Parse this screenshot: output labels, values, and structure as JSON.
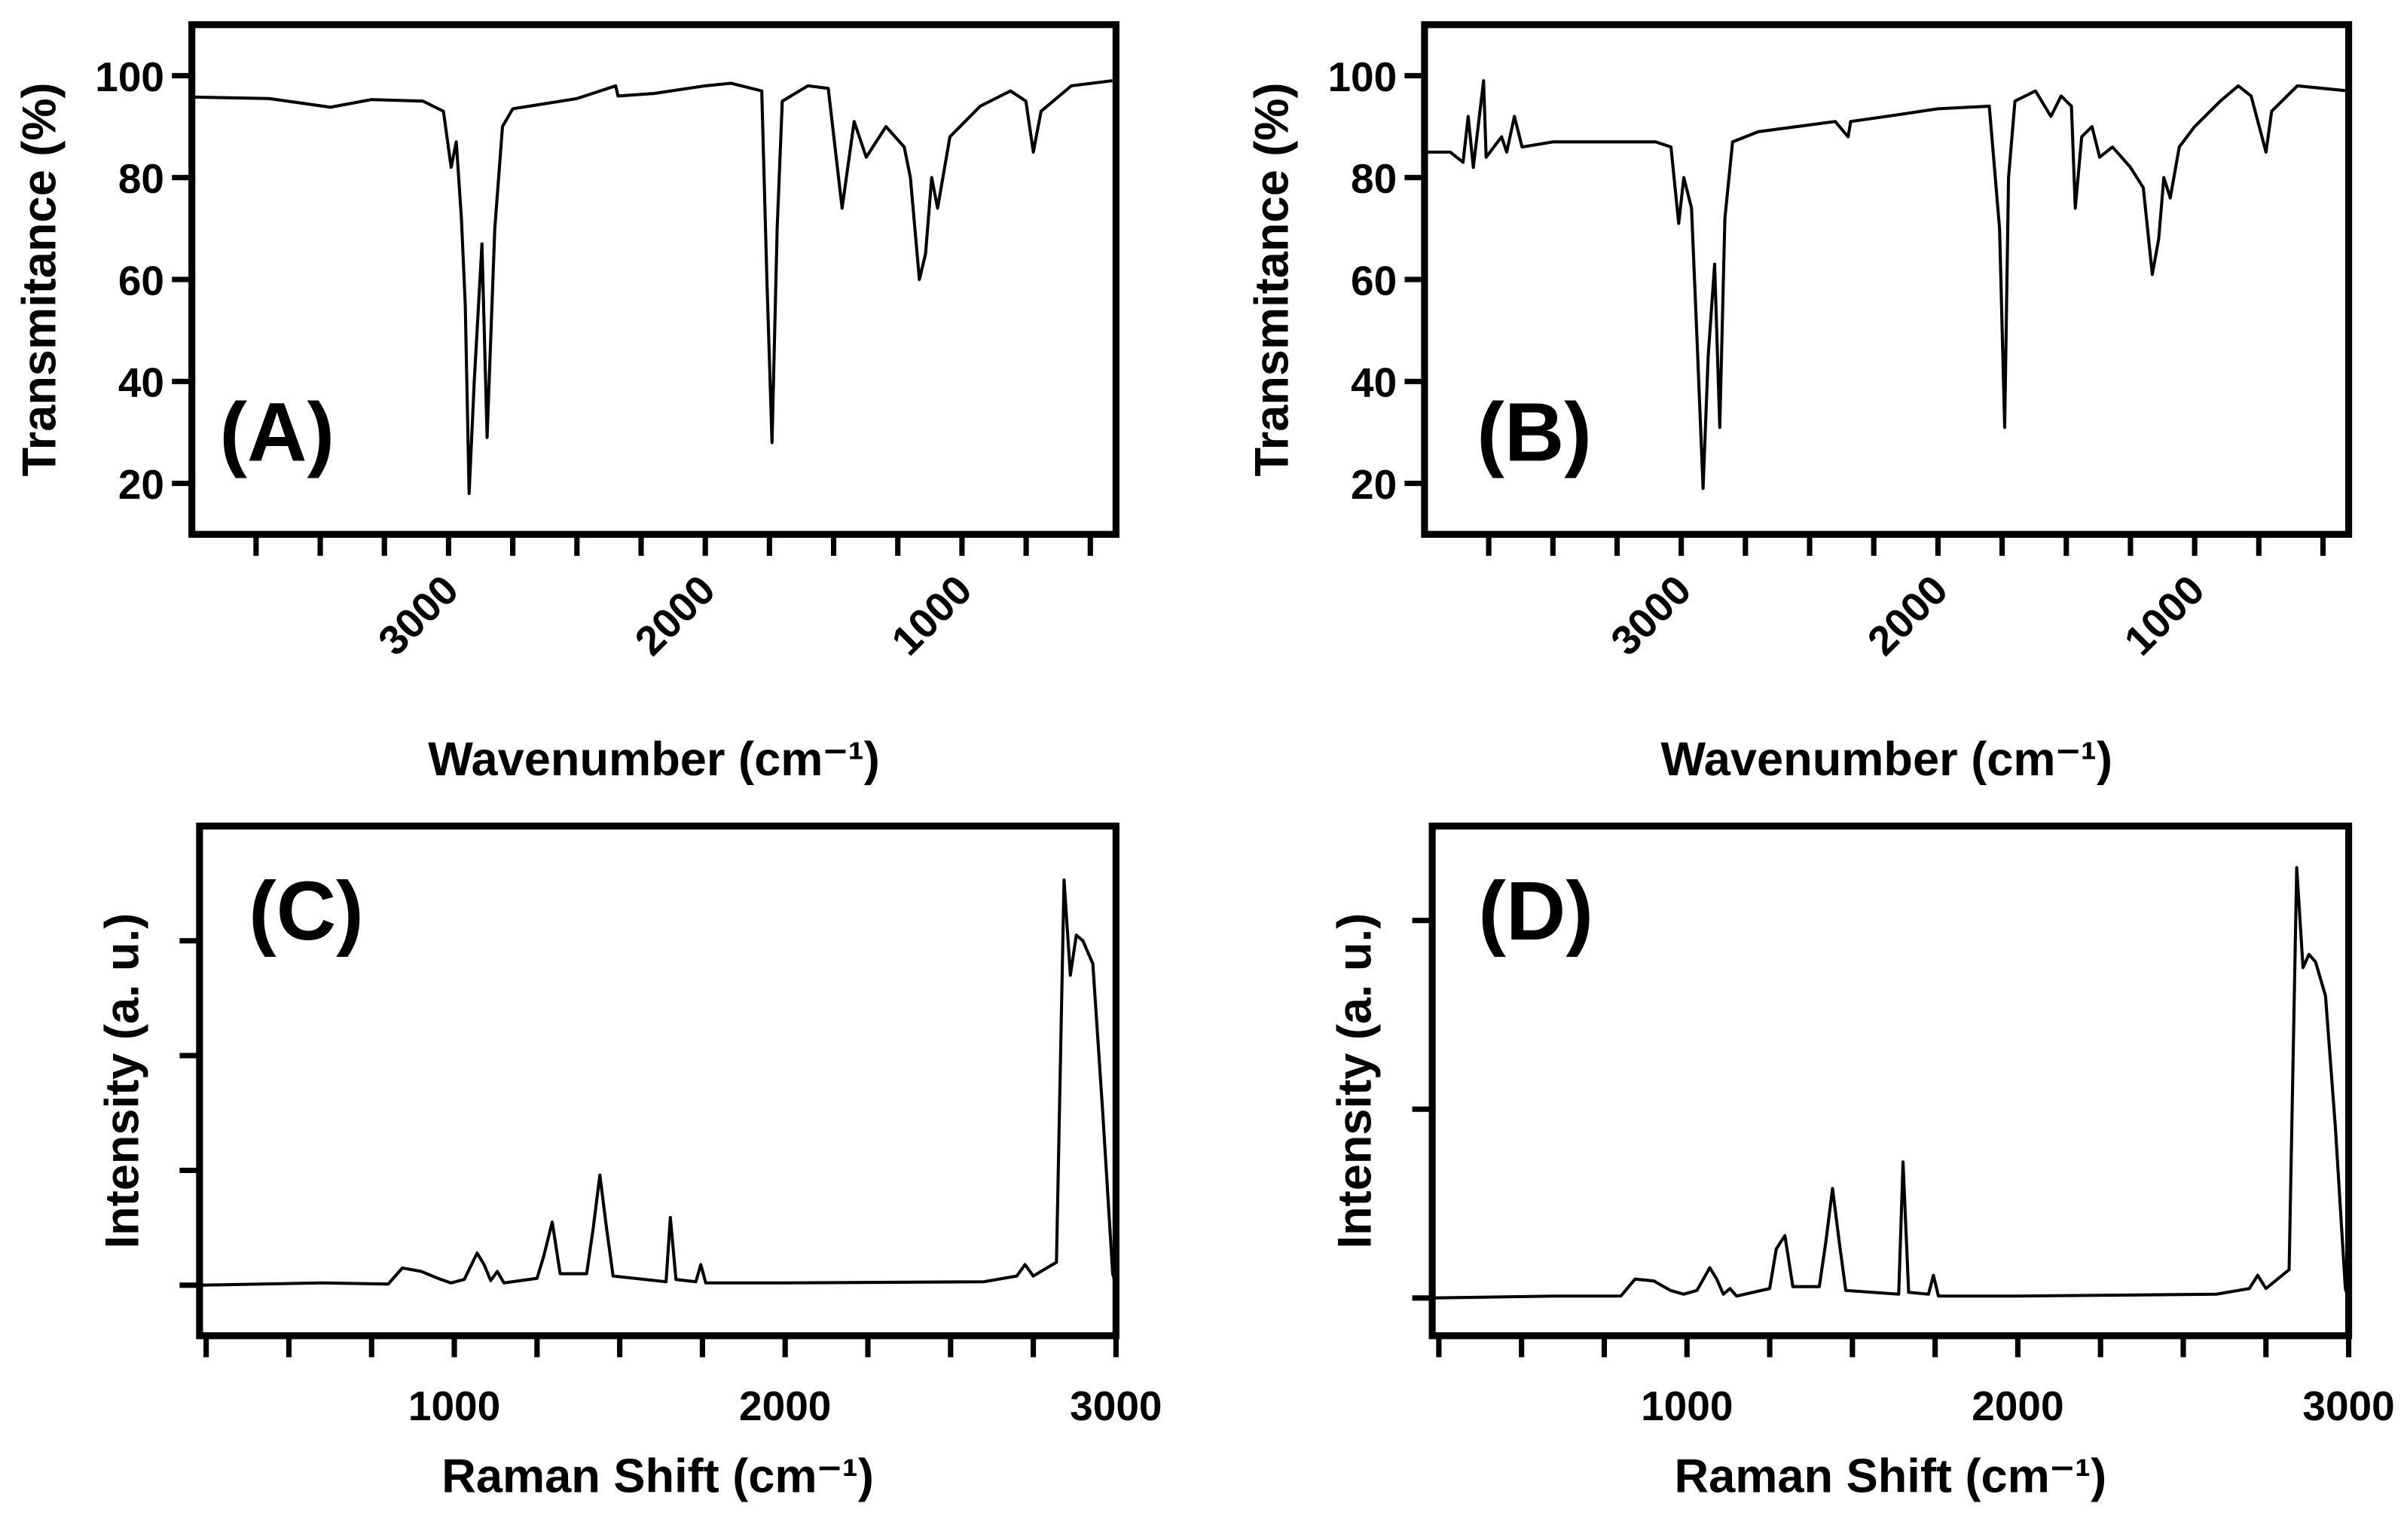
{
  "chart_data": [
    {
      "type": "line",
      "annotation": "(A)",
      "xlabel": "Wavenumber (cm⁻¹)",
      "ylabel": "Transmitance (%)",
      "xlim": [
        4000,
        400
      ],
      "xticks": [
        3000,
        2000,
        1000
      ],
      "xminor": [
        3750,
        3500,
        3250,
        2750,
        2500,
        2250,
        1750,
        1500,
        1250,
        750,
        500
      ],
      "ylim": [
        10,
        110
      ],
      "yticks": [
        20,
        40,
        60,
        80,
        100
      ],
      "series": [
        {
          "color": "#000000",
          "x": [
            4000,
            3700,
            3460,
            3300,
            3100,
            3020,
            2990,
            2970,
            2950,
            2935,
            2920,
            2900,
            2870,
            2850,
            2820,
            2790,
            2750,
            2500,
            2349,
            2340,
            2200,
            2000,
            1900,
            1780,
            1760,
            1740,
            1720,
            1700,
            1600,
            1521,
            1467,
            1420,
            1373,
            1296,
            1225,
            1201,
            1166,
            1142,
            1118,
            1095,
            1047,
            929,
            811,
            751,
            722,
            692,
            574,
            414
          ],
          "values": [
            95.8,
            95.5,
            93.8,
            95.3,
            95,
            93,
            82,
            87,
            72,
            55,
            18,
            40,
            67,
            29,
            70,
            90,
            93.5,
            95.5,
            98,
            96,
            96.5,
            98,
            98.5,
            97,
            60,
            28,
            70,
            95,
            98,
            97.5,
            74,
            91,
            84,
            90,
            86,
            80,
            60,
            65,
            80,
            74,
            88,
            94,
            97,
            95,
            85,
            93,
            98,
            99
          ]
        }
      ]
    },
    {
      "type": "line",
      "annotation": "(B)",
      "xlabel": "Wavenumber (cm⁻¹)",
      "ylabel": "Transmitance (%)",
      "xlim": [
        4000,
        400
      ],
      "xticks": [
        3000,
        2000,
        1000
      ],
      "xminor": [
        3750,
        3500,
        3250,
        2750,
        2500,
        2250,
        1750,
        1500,
        1250,
        750,
        500
      ],
      "ylim": [
        10,
        110
      ],
      "yticks": [
        20,
        40,
        60,
        80,
        100
      ],
      "series": [
        {
          "color": "#000000",
          "x": [
            4000,
            3900,
            3850,
            3830,
            3810,
            3770,
            3760,
            3700,
            3680,
            3650,
            3620,
            3500,
            3100,
            3040,
            3010,
            2990,
            2960,
            2940,
            2915,
            2895,
            2870,
            2850,
            2830,
            2800,
            2700,
            2400,
            2350,
            2340,
            2200,
            2000,
            1800,
            1760,
            1740,
            1725,
            1700,
            1620,
            1560,
            1520,
            1480,
            1465,
            1440,
            1400,
            1370,
            1320,
            1250,
            1200,
            1165,
            1140,
            1120,
            1095,
            1060,
            1000,
            900,
            830,
            780,
            722,
            700,
            600,
            400
          ],
          "values": [
            85,
            85,
            83,
            92,
            82,
            99,
            84,
            88,
            85,
            92,
            86,
            87,
            87,
            86,
            71,
            80,
            74,
            50,
            19,
            45,
            63,
            31,
            72,
            87,
            89,
            91,
            88,
            91,
            92,
            93.5,
            94,
            70,
            31,
            80,
            95,
            97,
            92,
            96,
            94,
            74,
            88,
            90,
            84,
            86,
            82,
            78,
            61,
            68,
            80,
            76,
            86,
            90,
            95,
            98,
            96,
            85,
            93,
            98,
            97
          ]
        }
      ]
    },
    {
      "type": "line",
      "annotation": "(C)",
      "xlabel": "Raman Shift (cm⁻¹)",
      "ylabel": "Intensity (a. u.)",
      "xlim": [
        230,
        3000
      ],
      "xticks": [
        1000,
        2000,
        3000
      ],
      "xminor": [
        250,
        500,
        750,
        1250,
        1500,
        1750,
        2250,
        2500,
        2750
      ],
      "ylim": [
        -0.44,
        4
      ],
      "yticks": [
        0,
        1,
        2,
        3
      ],
      "ytick_labels": false,
      "series": [
        {
          "color": "#000000",
          "x": [
            230,
            600,
            800,
            843,
            900,
            950,
            990,
            1030,
            1069,
            1090,
            1110,
            1130,
            1150,
            1250,
            1270,
            1296,
            1320,
            1400,
            1420,
            1440,
            1460,
            1480,
            1640,
            1653,
            1670,
            1730,
            1745,
            1760,
            2000,
            2600,
            2700,
            2725,
            2750,
            2820,
            2843,
            2862,
            2880,
            2900,
            2930,
            2960,
            2990,
            3000
          ],
          "values": [
            0,
            0.02,
            0.01,
            0.15,
            0.12,
            0.06,
            0.02,
            0.05,
            0.28,
            0.18,
            0.04,
            0.12,
            0.02,
            0.06,
            0.25,
            0.55,
            0.1,
            0.1,
            0.5,
            0.96,
            0.5,
            0.08,
            0.03,
            0.59,
            0.05,
            0.03,
            0.18,
            0.02,
            0.02,
            0.03,
            0.08,
            0.18,
            0.08,
            0.2,
            3.53,
            2.7,
            3.05,
            3.0,
            2.8,
            1.5,
            0.1,
            0
          ]
        }
      ]
    },
    {
      "type": "line",
      "annotation": "(D)",
      "xlabel": "Raman Shift (cm⁻¹)",
      "ylabel": "Intensity (a. u.)",
      "xlim": [
        230,
        3000
      ],
      "xticks": [
        1000,
        2000,
        3000
      ],
      "xminor": [
        250,
        500,
        750,
        1250,
        1500,
        1750,
        2250,
        2500,
        2750
      ],
      "ylim": [
        -0.2,
        2.5
      ],
      "yticks": [
        0,
        1,
        2
      ],
      "ytick_labels": false,
      "series": [
        {
          "color": "#000000",
          "x": [
            230,
            600,
            800,
            843,
            900,
            950,
            990,
            1030,
            1069,
            1090,
            1110,
            1130,
            1150,
            1250,
            1270,
            1296,
            1320,
            1400,
            1420,
            1440,
            1460,
            1480,
            1640,
            1653,
            1670,
            1730,
            1745,
            1760,
            2000,
            2600,
            2700,
            2725,
            2750,
            2820,
            2843,
            2862,
            2880,
            2900,
            2930,
            2960,
            2990,
            3000
          ],
          "values": [
            0,
            0.01,
            0.01,
            0.1,
            0.09,
            0.04,
            0.02,
            0.04,
            0.16,
            0.1,
            0.02,
            0.05,
            0.01,
            0.05,
            0.26,
            0.33,
            0.06,
            0.06,
            0.3,
            0.58,
            0.3,
            0.04,
            0.02,
            0.72,
            0.03,
            0.02,
            0.12,
            0.01,
            0.01,
            0.02,
            0.05,
            0.12,
            0.05,
            0.15,
            2.28,
            1.75,
            1.82,
            1.78,
            1.6,
            0.9,
            0.05,
            -0.01
          ]
        }
      ]
    }
  ]
}
